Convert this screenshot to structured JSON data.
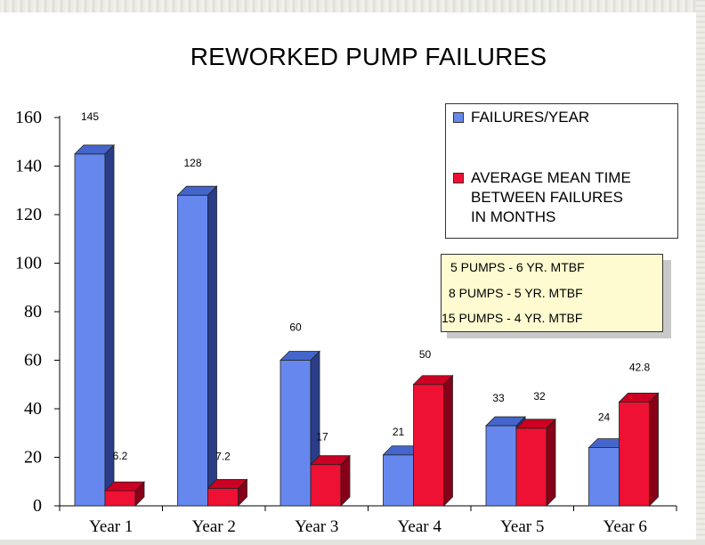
{
  "chart_data": {
    "type": "bar",
    "title": "REWORKED PUMP FAILURES",
    "categories": [
      "Year 1",
      "Year 2",
      "Year 3",
      "Year 4",
      "Year 5",
      "Year 6"
    ],
    "series": [
      {
        "name": "FAILURES/YEAR",
        "values": [
          145,
          128,
          60,
          21,
          33,
          24
        ],
        "labels": [
          "145",
          "128",
          "60",
          "21",
          "33",
          "24"
        ],
        "color": "#6688ee"
      },
      {
        "name": "AVERAGE MEAN TIME\nBETWEEN FAILURES\nIN MONTHS",
        "values": [
          6.2,
          7.2,
          17,
          50,
          32,
          42.8
        ],
        "labels": [
          "6.2",
          "7.2",
          "17",
          "50",
          "32",
          "42.8"
        ],
        "color": "#ee1133"
      }
    ],
    "ylim": [
      0,
      160
    ],
    "yticks": [
      "0",
      "20",
      "40",
      "60",
      "80",
      "100",
      "120",
      "140",
      "160"
    ],
    "xlabel": "",
    "ylabel": "",
    "grid": false,
    "legend_position": "top-right",
    "bar_style": "3d"
  },
  "notes": [
    "5 PUMPS - 6 YR. MTBF",
    "8 PUMPS - 5 YR. MTBF",
    "15 PUMPS - 4 YR. MTBF"
  ],
  "colors": {
    "blue_front": "#6688ee",
    "blue_top": "#4466cc",
    "blue_side": "#2a3d88",
    "red_front": "#ee1133",
    "red_top": "#cc0022",
    "red_side": "#880018",
    "note_bg": "#fffbd0"
  }
}
